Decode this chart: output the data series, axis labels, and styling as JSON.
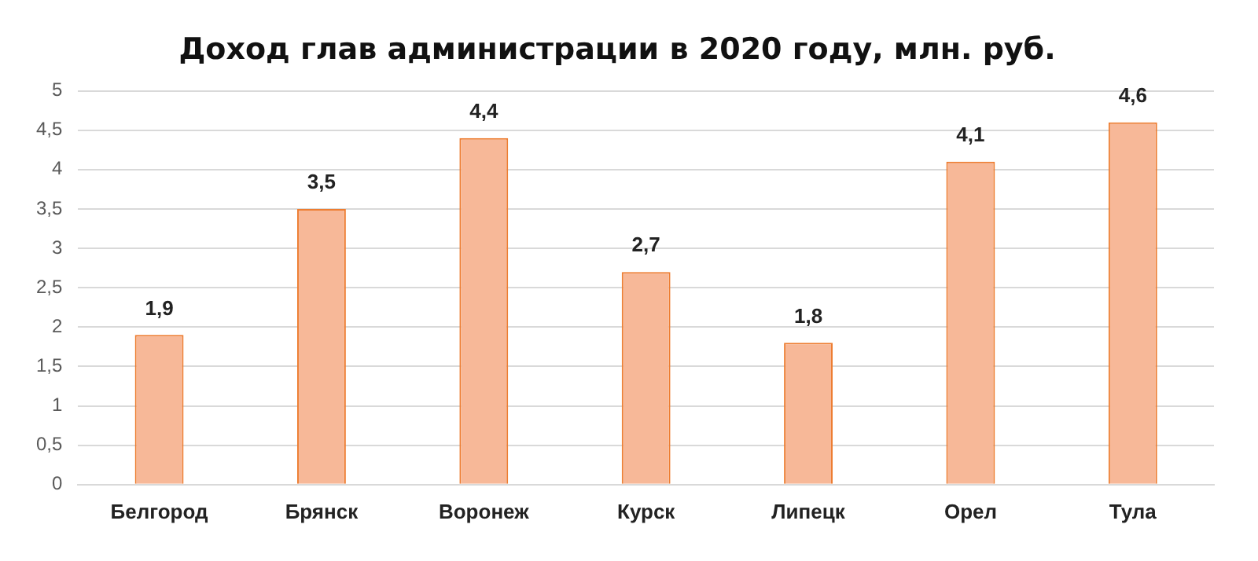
{
  "chart_data": {
    "type": "bar",
    "title": "Доход глав администрации в 2020 году, млн. руб.",
    "categories": [
      "Белгород",
      "Брянск",
      "Воронеж",
      "Курск",
      "Липецк",
      "Орел",
      "Тула"
    ],
    "values": [
      1.9,
      3.5,
      4.4,
      2.7,
      1.8,
      4.1,
      4.6
    ],
    "value_labels": [
      "1,9",
      "3,5",
      "4,4",
      "2,7",
      "1,8",
      "4,1",
      "4,6"
    ],
    "color": "#f7b898",
    "ylim": [
      0,
      5
    ],
    "yticks": [
      0,
      {
        "value": 0.5,
        "label": "0,5"
      },
      1,
      {
        "value": 1.5,
        "label": "1,5"
      },
      2,
      {
        "value": 2.5,
        "label": "2,5"
      },
      3,
      {
        "value": 3.5,
        "label": "3,5"
      },
      4,
      {
        "value": 4.5,
        "label": "4,5"
      },
      5
    ],
    "grid": "y",
    "legend": false
  }
}
